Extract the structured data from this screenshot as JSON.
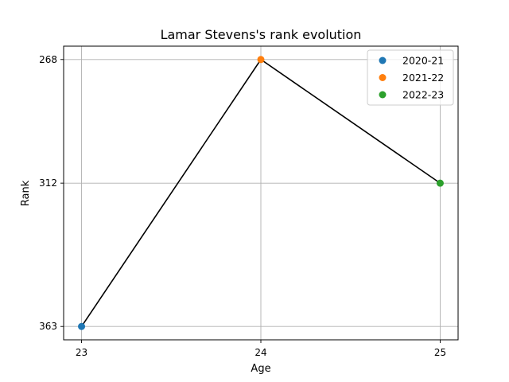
{
  "chart_data": {
    "type": "line",
    "title": "Lamar Stevens's rank evolution",
    "xlabel": "Age",
    "ylabel": "Rank",
    "x_ticks": [
      "23",
      "24",
      "25"
    ],
    "y_ticks": [
      "268",
      "312",
      "363"
    ],
    "y_inverted": true,
    "grid": true,
    "legend_position": "top-right",
    "line_color": "#000000",
    "points": [
      {
        "season": "2020-21",
        "age": 23,
        "rank": 363,
        "color": "#1f77b4"
      },
      {
        "season": "2021-22",
        "age": 24,
        "rank": 268,
        "color": "#ff7f0e"
      },
      {
        "season": "2022-23",
        "age": 25,
        "rank": 312,
        "color": "#2ca02c"
      }
    ]
  }
}
